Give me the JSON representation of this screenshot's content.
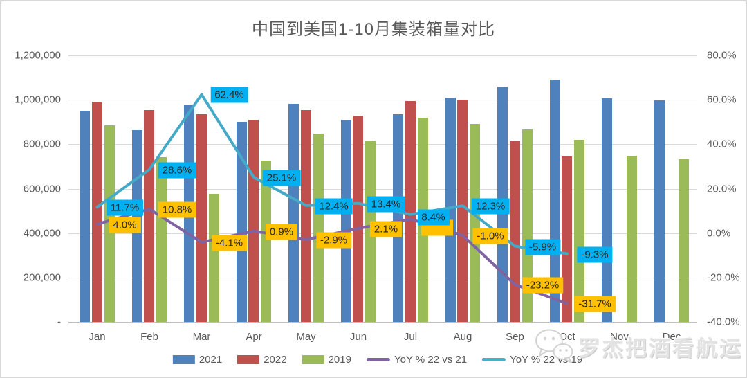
{
  "window": {
    "background": "#ffffff",
    "border_color": "#d8d8d8"
  },
  "chart_data": {
    "type": "combo-bar-line",
    "title": "中国到美国1-10月集装箱量对比",
    "categories": [
      "Jan",
      "Feb",
      "Mar",
      "Apr",
      "May",
      "Jun",
      "Jul",
      "Aug",
      "Sep",
      "Oct",
      "Nov",
      "Dec"
    ],
    "bar_series": [
      {
        "name": "2021",
        "color": "#4F81BD",
        "values": [
          952000,
          862000,
          975000,
          902000,
          981000,
          909000,
          936000,
          1010000,
          1061000,
          1091000,
          1008000,
          997000
        ]
      },
      {
        "name": "2022",
        "color": "#C0504D",
        "values": [
          990000,
          955000,
          935000,
          910000,
          953000,
          928000,
          995000,
          1000000,
          815000,
          745000,
          null,
          null
        ]
      },
      {
        "name": "2019",
        "color": "#9BBB59",
        "values": [
          886000,
          743000,
          576000,
          727000,
          848000,
          818000,
          918000,
          890000,
          866000,
          821000,
          748000,
          732000
        ]
      }
    ],
    "line_series": [
      {
        "name": "YoY % 22 vs 21",
        "color": "#8064A2",
        "label_bg": "#FFC000",
        "values": [
          4.0,
          10.8,
          -4.1,
          0.9,
          -2.9,
          2.1,
          6.3,
          -1.0,
          -23.2,
          -31.7
        ],
        "labels": [
          "4.0%",
          "10.8%",
          "-4.1%",
          "0.9%",
          "-2.9%",
          "2.1%",
          "",
          "-1.0%",
          "-23.2%",
          "-31.7%"
        ],
        "note": "Jul label box is occluded by the 8.4% label; Jul value estimated from line position"
      },
      {
        "name": "YoY % 22 vs 19",
        "color": "#44AAC8",
        "label_bg": "#00B0F0",
        "values": [
          11.7,
          28.6,
          62.4,
          25.1,
          12.4,
          13.4,
          8.4,
          12.3,
          -5.9,
          -9.3
        ],
        "labels": [
          "11.7%",
          "28.6%",
          "62.4%",
          "25.1%",
          "12.4%",
          "13.4%",
          "8.4%",
          "12.3%",
          "-5.9%",
          "-9.3%"
        ]
      }
    ],
    "y_axis_left": {
      "ticks": [
        "1,200,000",
        "1,000,000",
        "800,000",
        "600,000",
        "400,000",
        "200,000",
        "-"
      ],
      "range": [
        0,
        1200000
      ],
      "grid": true
    },
    "y_axis_right": {
      "ticks": [
        "80.0%",
        "60.0%",
        "40.0%",
        "20.0%",
        "0.0%",
        "-20.0%",
        "-40.0%"
      ],
      "range": [
        -40,
        80
      ]
    },
    "legend_position": "bottom"
  },
  "legend": {
    "items": [
      {
        "label": "2021",
        "color": "#4F81BD",
        "type": "bar"
      },
      {
        "label": "2022",
        "color": "#C0504D",
        "type": "bar"
      },
      {
        "label": "2019",
        "color": "#9BBB59",
        "type": "bar"
      },
      {
        "label": "YoY % 22 vs 21",
        "color": "#8064A2",
        "type": "line"
      },
      {
        "label": "YoY % 22 vs 19",
        "color": "#4BACC6",
        "type": "line"
      }
    ]
  },
  "watermark": {
    "text": "罗杰把酒看航运",
    "icon": "wechat-icon"
  }
}
